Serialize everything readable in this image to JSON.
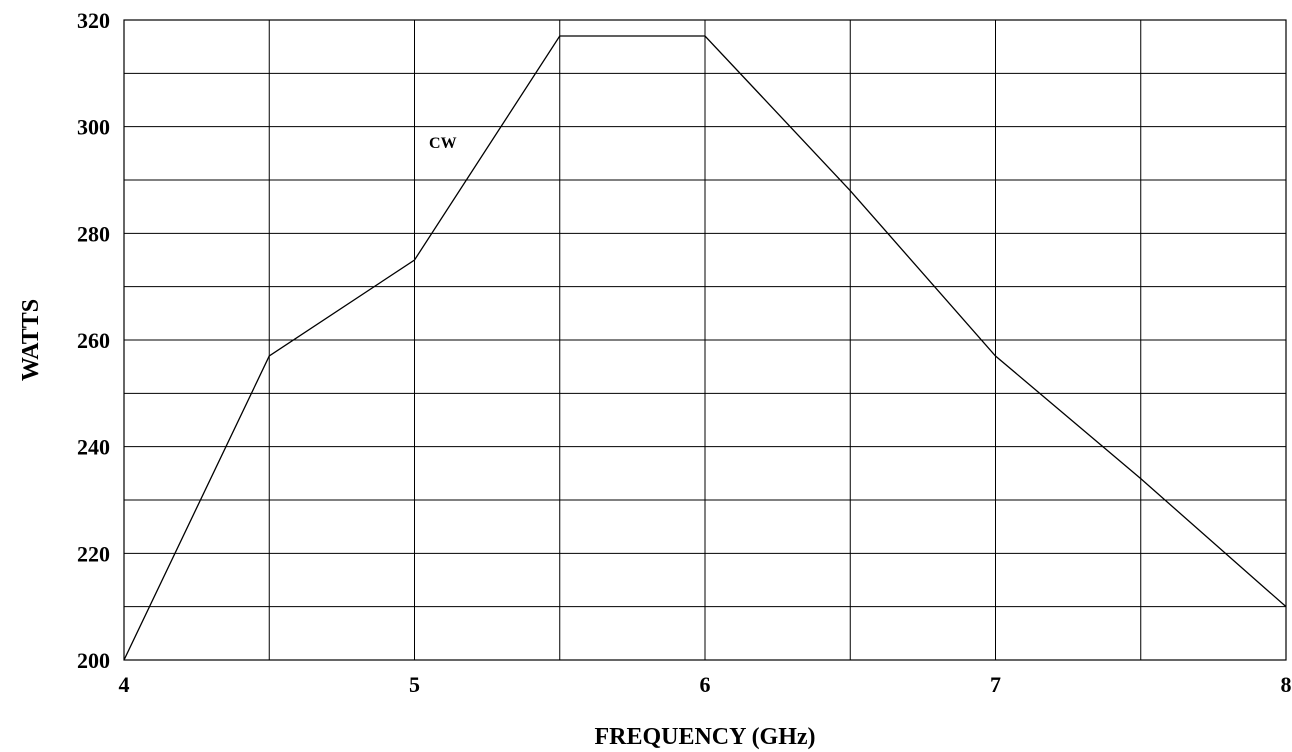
{
  "chart_data": {
    "type": "line",
    "title": "",
    "xlabel": "FREQUENCY (GHz)",
    "ylabel": "WATTS",
    "xlim": [
      4,
      8
    ],
    "ylim": [
      200,
      320
    ],
    "grid": true,
    "x_grid_step": 0.5,
    "y_grid_step": 10,
    "x_ticks": [
      {
        "value": 4,
        "label": "4"
      },
      {
        "value": 5,
        "label": "5"
      },
      {
        "value": 6,
        "label": "6"
      },
      {
        "value": 7,
        "label": "7"
      },
      {
        "value": 8,
        "label": "8"
      }
    ],
    "y_ticks": [
      {
        "value": 200,
        "label": "200"
      },
      {
        "value": 220,
        "label": "220"
      },
      {
        "value": 240,
        "label": "240"
      },
      {
        "value": 260,
        "label": "260"
      },
      {
        "value": 280,
        "label": "280"
      },
      {
        "value": 300,
        "label": "300"
      },
      {
        "value": 320,
        "label": "320"
      }
    ],
    "series": [
      {
        "line_color": "#000000",
        "x": [
          4,
          4.5,
          5,
          5.5,
          6,
          6.5,
          7,
          7.5,
          8
        ],
        "y": [
          200,
          257,
          275,
          317,
          317,
          288,
          257,
          234,
          210
        ]
      }
    ],
    "annotations": [
      {
        "text": "CW",
        "x": 5.05,
        "y": 296
      }
    ]
  }
}
